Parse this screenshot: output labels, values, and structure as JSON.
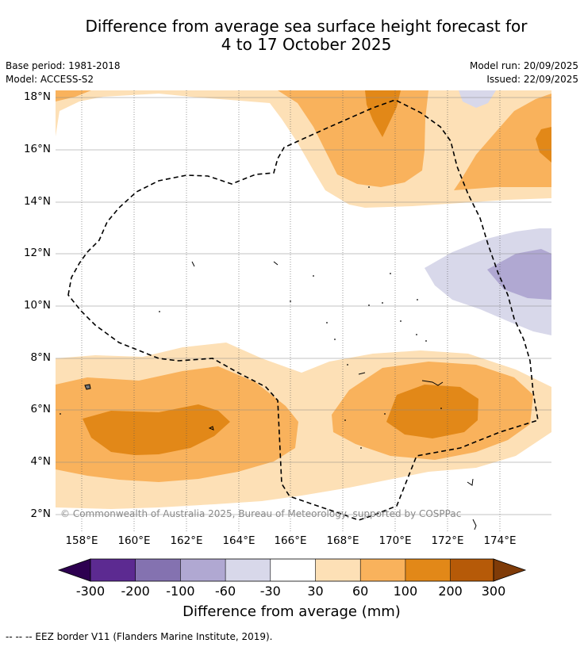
{
  "title": {
    "line1": "Difference from average sea surface height forecast for",
    "line2": "4 to 17 October 2025"
  },
  "meta": {
    "base_period": "Base period: 1981-2018",
    "model": "Model: ACCESS-S2",
    "model_run": "Model run: 20/09/2025",
    "issued": "Issued: 22/09/2025"
  },
  "map": {
    "lat_labels": [
      "18°N",
      "16°N",
      "14°N",
      "12°N",
      "10°N",
      "8°N",
      "6°N",
      "4°N",
      "2°N"
    ],
    "lon_labels": [
      "158°E",
      "160°E",
      "162°E",
      "164°E",
      "166°E",
      "168°E",
      "170°E",
      "172°E",
      "174°E"
    ],
    "copyright": "© Commonwealth of Australia 2025, Bureau of Meteorology, supported by COSPPac"
  },
  "colorbar": {
    "ticks": [
      "-300",
      "-200",
      "-100",
      "-60",
      "-30",
      "30",
      "60",
      "100",
      "200",
      "300"
    ],
    "colors": [
      "#2d0050",
      "#5c2a91",
      "#8472b0",
      "#b0a8d2",
      "#d8d8ea",
      "#ffffff",
      "#fde0b6",
      "#f9b25c",
      "#e28818",
      "#b65a08",
      "#7f3b08"
    ],
    "title": "Difference from average (mm)"
  },
  "footer": {
    "legend": "--  --  -- EEZ border V11 (Flanders Marine Institute, 2019)."
  }
}
